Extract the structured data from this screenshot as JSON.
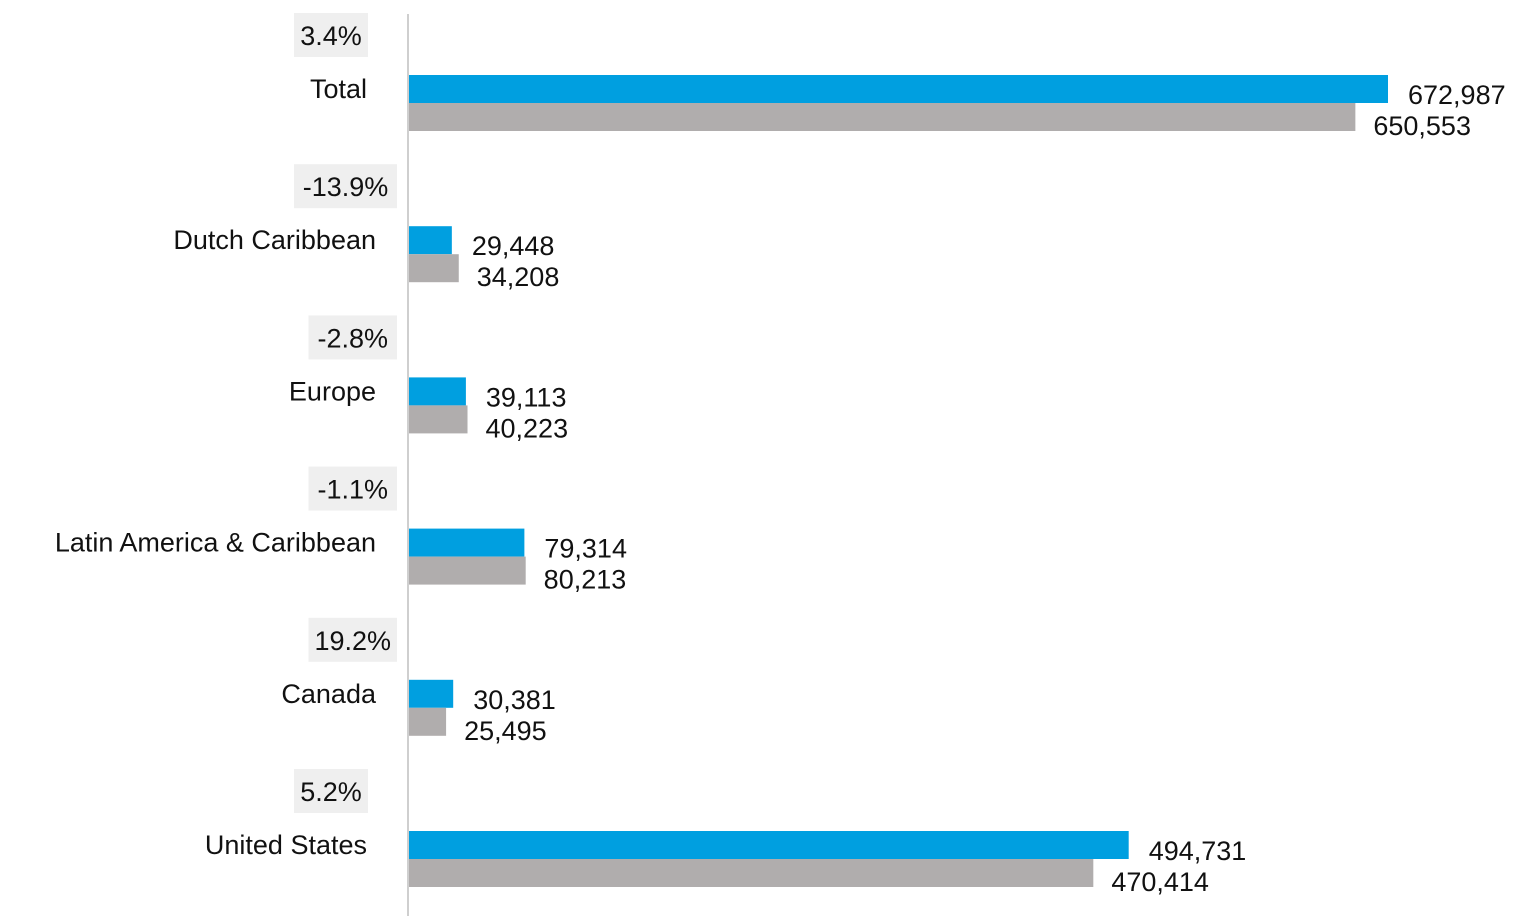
{
  "chart_data": {
    "type": "bar",
    "orientation": "horizontal",
    "categories": [
      "Total",
      "Dutch Caribbean",
      "Europe",
      "Latin America & Caribbean",
      "Canada",
      "United States"
    ],
    "series": [
      {
        "values": [
          672987,
          29448,
          39113,
          79314,
          30381,
          494731
        ],
        "labels": [
          "672,987",
          "29,448",
          "39,113",
          "79,314",
          "30,381",
          "494,731"
        ],
        "color": "#009fe0"
      },
      {
        "values": [
          650553,
          34208,
          40223,
          80213,
          25495,
          470414
        ],
        "labels": [
          "650,553",
          "34,208",
          "40,223",
          "80,213",
          "25,495",
          "470,414"
        ],
        "color": "#b0adad"
      }
    ],
    "change_labels": [
      "3.4%",
      "-13.9%",
      "-2.8%",
      "-1.1%",
      "19.2%",
      "5.2%"
    ],
    "change_label_bg": "#efefef",
    "axis_color": "#bfbfbf",
    "xlim": [
      0,
      672987
    ],
    "grid": false,
    "legend": "none"
  }
}
